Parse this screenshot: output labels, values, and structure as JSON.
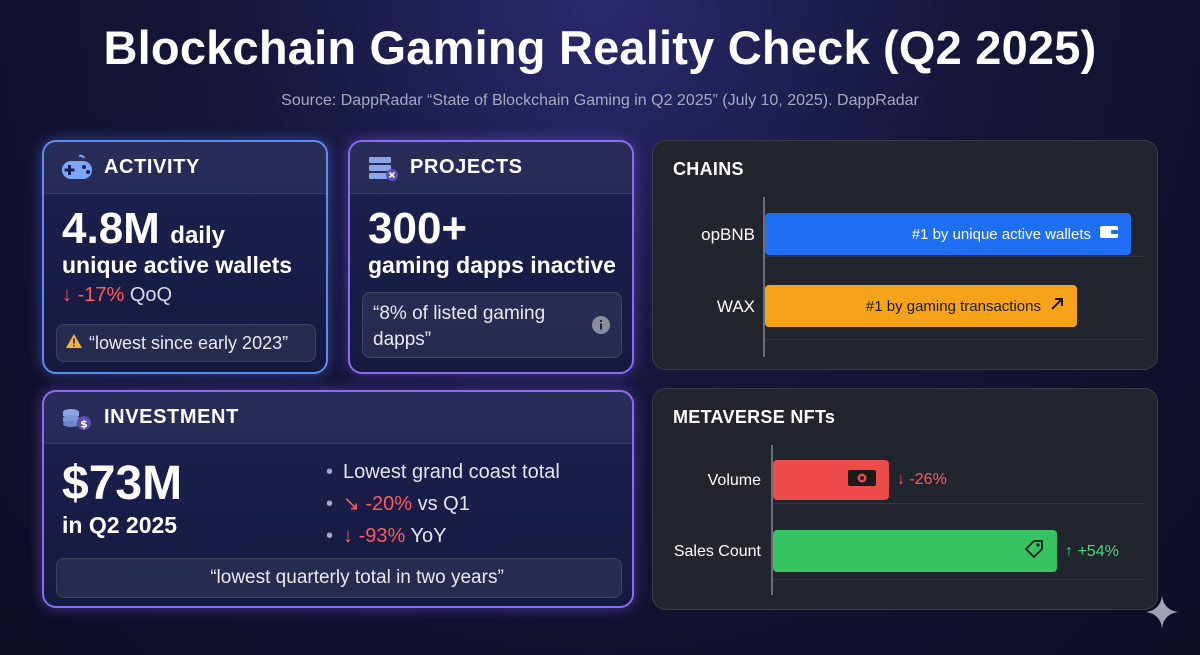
{
  "header": {
    "title": "Blockchain Gaming Reality Check (Q2 2025)",
    "source": "Source: DappRadar “State of Blockchain Gaming in Q2 2025” (July 10, 2025). DappRadar"
  },
  "activity": {
    "label": "ACTIVITY",
    "icon": "gamepad-icon",
    "value": "4.8M",
    "unit": "daily",
    "description": "unique active wallets",
    "change": "-17%",
    "change_suffix": "QoQ",
    "quote": "“lowest since early 2023”"
  },
  "projects": {
    "label": "PROJECTS",
    "icon": "stack-icon",
    "value": "300+",
    "description": "gaming dapps inactive",
    "quote_line1": "“8% of listed gaming",
    "quote_line2": "dapps”"
  },
  "investment": {
    "label": "INVESTMENT",
    "icon": "coins-icon",
    "value": "$73M",
    "period": "in Q2 2025",
    "bullets": [
      {
        "text": "Lowest grand coast total"
      },
      {
        "value": "-20%",
        "suffix": "vs Q1"
      },
      {
        "value": "-93%",
        "suffix": "YoY"
      }
    ],
    "quote": "“lowest quarterly total in two years”"
  },
  "chains": {
    "label": "CHAINS",
    "bars": [
      {
        "name": "opBNB",
        "text": "#1 by unique active wallets",
        "color": "#1f6ff5"
      },
      {
        "name": "WAX",
        "text": "#1 by gaming transactions",
        "color": "#f6a31a"
      }
    ]
  },
  "metaverse": {
    "label": "METAVERSE NFTs",
    "bars": [
      {
        "name": "Volume",
        "change": "-26%",
        "color": "#ef4b4b"
      },
      {
        "name": "Sales Count",
        "change": "+54%",
        "color": "#36c463"
      }
    ]
  }
}
